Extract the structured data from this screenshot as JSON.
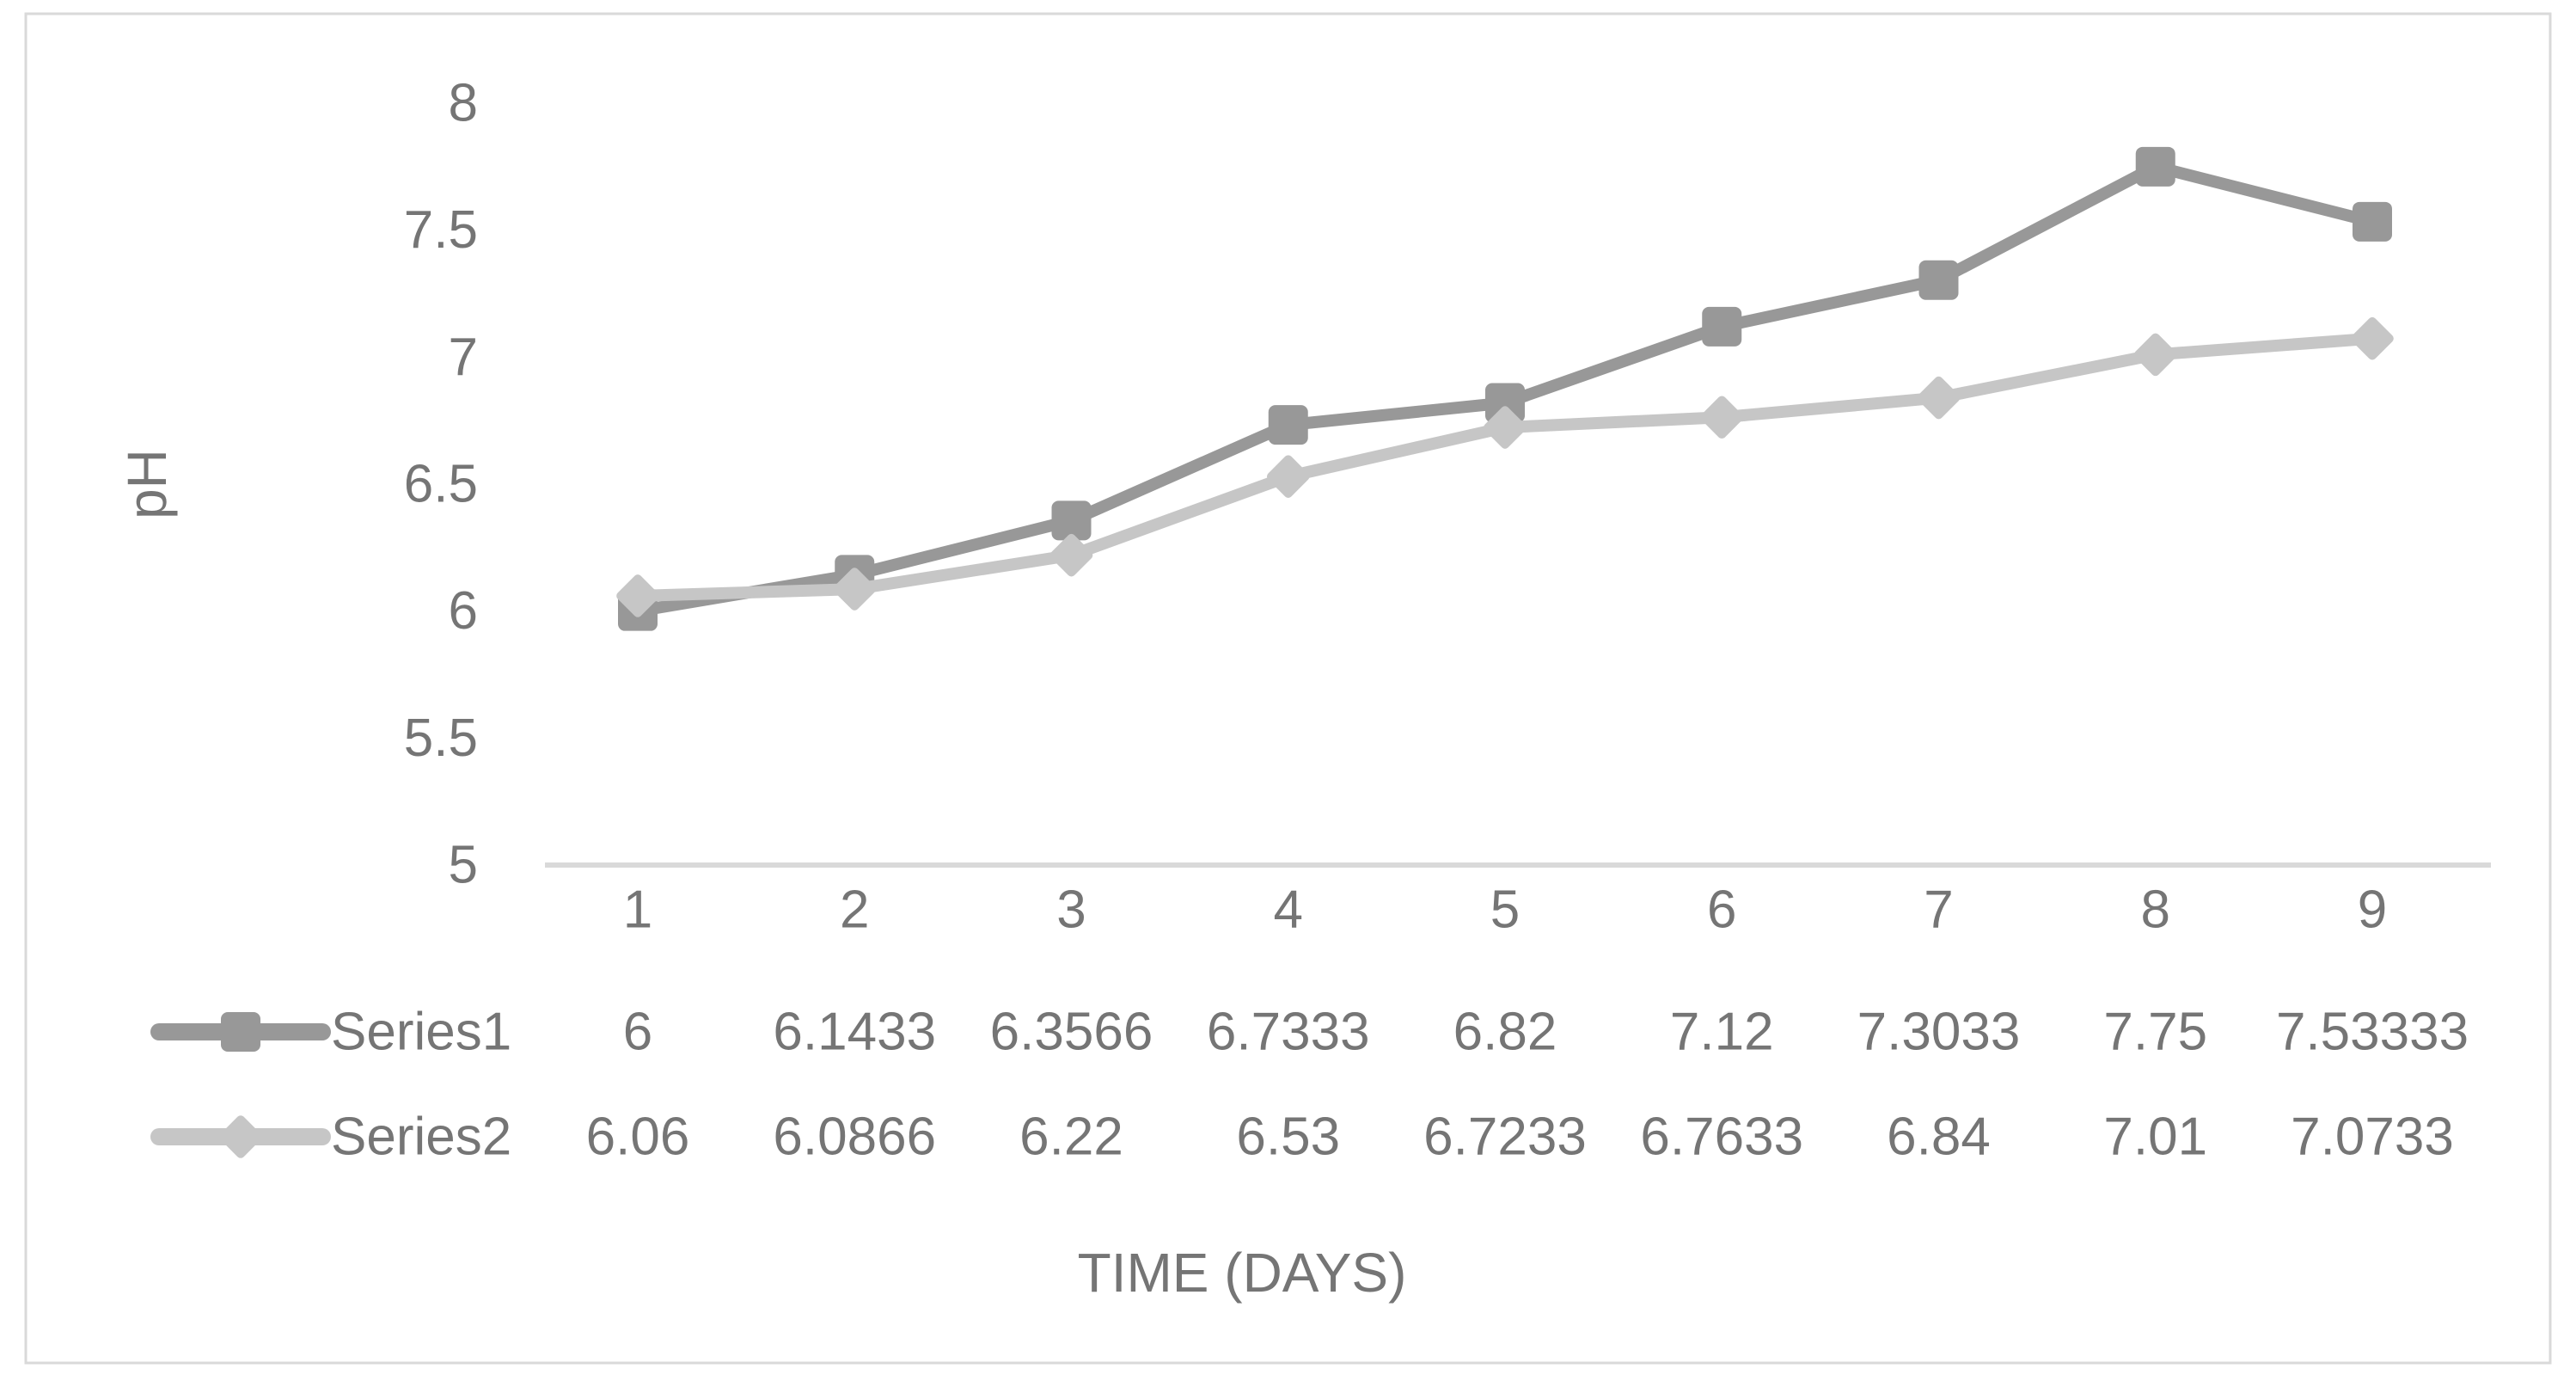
{
  "chart_data": {
    "type": "line",
    "title": "",
    "xlabel": "TIME (DAYS)",
    "ylabel": "pH",
    "categories": [
      "1",
      "2",
      "3",
      "4",
      "5",
      "6",
      "7",
      "8",
      "9"
    ],
    "ylim": [
      5,
      8
    ],
    "ytick_step": 0.5,
    "ytick_labels": [
      "8",
      "7.5",
      "7",
      "6.5",
      "6",
      "5.5",
      "5"
    ],
    "grid": false,
    "legend_position": "table-rows-left",
    "series": [
      {
        "name": "Series1",
        "marker": "square",
        "color": "#989898",
        "values": [
          6,
          6.1433,
          6.3566,
          6.7333,
          6.82,
          7.12,
          7.3033,
          7.75,
          7.53333
        ],
        "display_values": [
          "6",
          "6.1433",
          "6.3566",
          "6.7333",
          "6.82",
          "7.12",
          "7.3033",
          "7.75",
          "7.53333"
        ]
      },
      {
        "name": "Series2",
        "marker": "diamond",
        "color": "#c6c6c6",
        "values": [
          6.06,
          6.0866,
          6.22,
          6.53,
          6.7233,
          6.7633,
          6.84,
          7.01,
          7.0733
        ],
        "display_values": [
          "6.06",
          "6.0866",
          "6.22",
          "6.53",
          "6.7233",
          "6.7633",
          "6.84",
          "7.01",
          "7.0733"
        ]
      }
    ]
  },
  "colors": {
    "background": "#ffffff",
    "border": "#d9d9d9",
    "axis_line": "#d9d9d9",
    "text": "#757575"
  }
}
